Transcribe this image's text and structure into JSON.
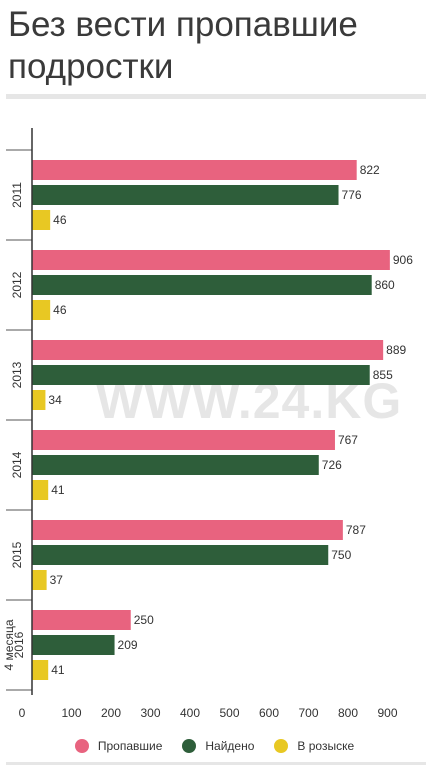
{
  "title": "Без вести пропавшие подростки",
  "watermark": "WWW.24.KG",
  "colors": {
    "missing": "#e8637f",
    "found": "#2e5e3a",
    "searching": "#e8c823"
  },
  "legend": [
    {
      "label": "Пропавшие",
      "color": "#e8637f"
    },
    {
      "label": "Найдено",
      "color": "#2e5e3a"
    },
    {
      "label": "В розыске",
      "color": "#e8c823"
    }
  ],
  "chart_data": {
    "type": "bar",
    "orientation": "horizontal",
    "categories": [
      "2011",
      "2012",
      "2013",
      "2014",
      "2015",
      "4 месяца 2016"
    ],
    "series": [
      {
        "name": "Пропавшие",
        "color": "#e8637f",
        "values": [
          822,
          906,
          889,
          767,
          787,
          250
        ]
      },
      {
        "name": "Найдено",
        "color": "#2e5e3a",
        "values": [
          776,
          860,
          855,
          726,
          750,
          209
        ]
      },
      {
        "name": "В розыске",
        "color": "#e8c823",
        "values": [
          46,
          46,
          34,
          41,
          37,
          41
        ]
      }
    ],
    "xticks": [
      0,
      100,
      200,
      300,
      400,
      500,
      600,
      700,
      800,
      900
    ],
    "xlim": [
      0,
      950
    ],
    "xlabel": "",
    "ylabel": "",
    "grid": false,
    "data_labels": true,
    "legend_position": "bottom"
  }
}
